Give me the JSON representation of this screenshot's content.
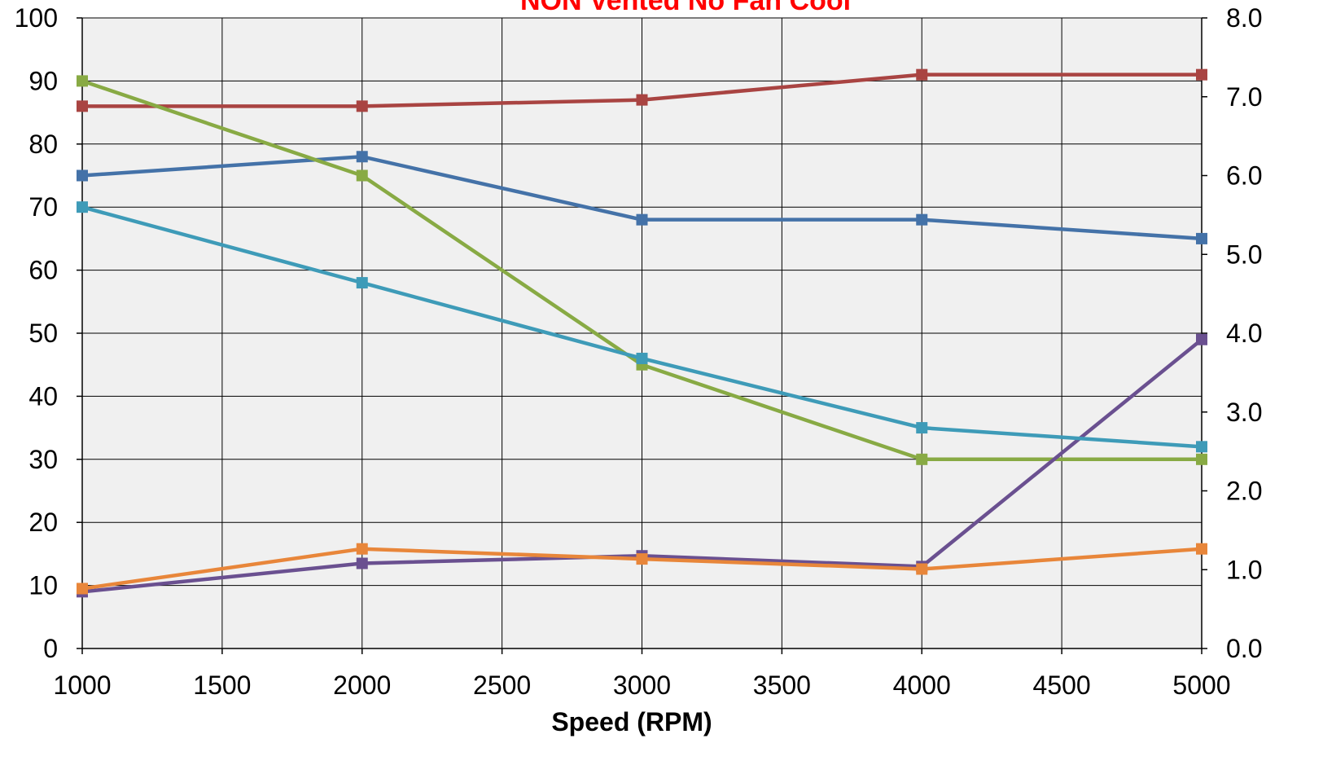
{
  "chart_data": {
    "type": "line",
    "title": "NON Vented No Fan Cool",
    "title_color": "#ff0000",
    "xlabel": "Speed (RPM)",
    "ylabel": "",
    "y2label": "",
    "x": [
      1000,
      2000,
      3000,
      4000,
      5000
    ],
    "xlim": [
      1000,
      5000
    ],
    "xticks": [
      "1000",
      "1500",
      "2000",
      "2500",
      "3000",
      "3500",
      "4000",
      "4500",
      "5000"
    ],
    "ylim": [
      0,
      100
    ],
    "yticks": [
      "0",
      "10",
      "20",
      "30",
      "40",
      "50",
      "60",
      "70",
      "80",
      "90",
      "100"
    ],
    "y2lim": [
      0,
      8
    ],
    "y2ticks": [
      "0.0",
      "1.0",
      "2.0",
      "3.0",
      "4.0",
      "5.0",
      "6.0",
      "7.0",
      "8.0"
    ],
    "grid": true,
    "plot_background": "#f0f0f0",
    "series": [
      {
        "color": "#4472a8",
        "axis": "left",
        "values": [
          75,
          78,
          68,
          68,
          65
        ]
      },
      {
        "color": "#a94442",
        "axis": "left",
        "values": [
          86,
          86,
          87,
          91,
          91
        ]
      },
      {
        "color": "#88aa44",
        "axis": "left",
        "values": [
          90,
          75,
          45,
          30,
          30
        ]
      },
      {
        "color": "#6a5090",
        "axis": "left",
        "values": [
          9,
          13.5,
          14.7,
          13,
          49
        ]
      },
      {
        "color": "#3e9bb8",
        "axis": "left",
        "values": [
          70,
          58,
          46,
          35,
          32
        ]
      },
      {
        "color": "#e8863a",
        "axis": "left",
        "values": [
          9.5,
          15.8,
          14.2,
          12.6,
          15.8
        ]
      }
    ]
  }
}
